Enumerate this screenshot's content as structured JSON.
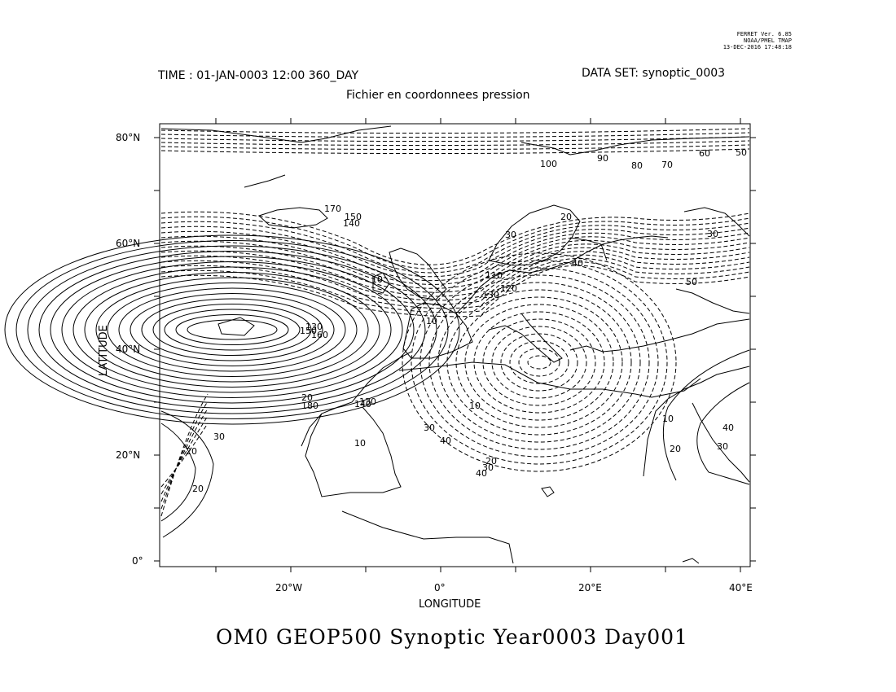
{
  "stamp": {
    "line1": "FERRET Ver. 6.85",
    "line2": "NOAA/PMEL TMAP",
    "line3": "13-DEC-2016 17:48:18"
  },
  "header": {
    "time": "TIME : 01-JAN-0003 12:00 360_DAY",
    "dataset": "DATA SET: synoptic_0003",
    "subtitle": "Fichier en coordonnees pression"
  },
  "chart_data": {
    "type": "contour",
    "xlabel": "LONGITUDE",
    "ylabel": "LATITUDE",
    "xlim": [
      -37.5,
      41.5
    ],
    "ylim": [
      -1,
      82.5
    ],
    "x_ticks": [
      "20°W",
      "0°",
      "20°E",
      "40°E"
    ],
    "y_ticks": [
      "80°N",
      "60°N",
      "40°N",
      "20°N",
      "0°"
    ],
    "contour_labels": [
      "100",
      "90",
      "80",
      "70",
      "60",
      "50",
      "20",
      "30",
      "40",
      "50",
      "110",
      "120",
      "130",
      "170",
      "150",
      "140",
      "150",
      "130",
      "160",
      "140",
      "130",
      "10",
      "40",
      "30",
      "20",
      "10",
      "10",
      "20",
      "30",
      "40",
      "30",
      "20",
      "30",
      "20",
      "10",
      "10",
      "20",
      "30",
      "40",
      "180"
    ],
    "title": "OM0 GEOP500 Synoptic Year0003 Day001"
  }
}
